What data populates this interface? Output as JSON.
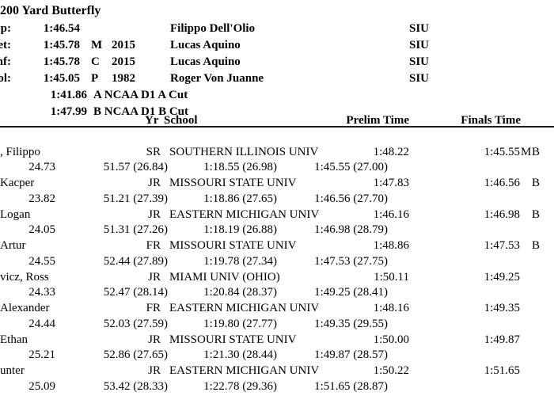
{
  "colors": {
    "background": "#ffffff",
    "text": "#000000",
    "rule": "#1c1c1c"
  },
  "event": {
    "title": "200 Yard Butterfly"
  },
  "records": [
    {
      "label": "p:",
      "time": "1:46.54",
      "flag": "",
      "year": "",
      "holder": "Filippo Dell'Olio",
      "team": "SIU"
    },
    {
      "label": "et:",
      "time": "1:45.78",
      "flag": "M",
      "year": "2015",
      "holder": "Lucas Aquino",
      "team": "SIU"
    },
    {
      "label": "nf:",
      "time": "1:45.78",
      "flag": "C",
      "year": "2015",
      "holder": "Lucas Aquino",
      "team": "SIU"
    },
    {
      "label": "ol:",
      "time": "1:45.05",
      "flag": "P",
      "year": "1982",
      "holder": "Roger Von Juanne",
      "team": "SIU"
    }
  ],
  "cuts": [
    {
      "time": "1:41.86",
      "label": "A NCAA D1 A Cut"
    },
    {
      "time": "1:47.99",
      "label": "B NCAA D1 B Cut"
    }
  ],
  "table": {
    "headers": {
      "yr": "Yr",
      "school": "School",
      "prelim": "Prelim Time",
      "finals": "Finals Time"
    },
    "rows": [
      {
        "name": ", Filippo",
        "yr": "SR",
        "school": "SOUTHERN ILLINOIS UNIV",
        "prelim": "1:48.22",
        "finals": "1:45.55",
        "flags": [
          "M",
          "B"
        ],
        "splits": [
          "24.73",
          "51.57 (26.84)",
          "1:18.55 (26.98)",
          "1:45.55 (27.00)"
        ]
      },
      {
        "name": "Kacper",
        "yr": "JR",
        "school": "MISSOURI STATE UNIV",
        "prelim": "1:47.83",
        "finals": "1:46.56",
        "flags": [
          "",
          "B"
        ],
        "splits": [
          "23.82",
          "51.21 (27.39)",
          "1:18.86 (27.65)",
          "1:46.56 (27.70)"
        ]
      },
      {
        "name": "Logan",
        "yr": "JR",
        "school": "EASTERN MICHIGAN UNIV",
        "prelim": "1:46.16",
        "finals": "1:46.98",
        "flags": [
          "",
          "B"
        ],
        "splits": [
          "24.05",
          "51.31 (27.26)",
          "1:18.19 (26.88)",
          "1:46.98 (28.79)"
        ]
      },
      {
        "name": "Artur",
        "yr": "FR",
        "school": "MISSOURI STATE UNIV",
        "prelim": "1:48.86",
        "finals": "1:47.53",
        "flags": [
          "",
          "B"
        ],
        "splits": [
          "24.55",
          "52.44 (27.89)",
          "1:19.78 (27.34)",
          "1:47.53 (27.75)"
        ]
      },
      {
        "name": "vicz, Ross",
        "yr": "JR",
        "school": "MIAMI UNIV (OHIO)",
        "prelim": "1:50.11",
        "finals": "1:49.25",
        "flags": [
          "",
          ""
        ],
        "splits": [
          "24.33",
          "52.47 (28.14)",
          "1:20.84 (28.37)",
          "1:49.25 (28.41)"
        ]
      },
      {
        "name": "Alexander",
        "yr": "FR",
        "school": "EASTERN MICHIGAN UNIV",
        "prelim": "1:48.16",
        "finals": "1:49.35",
        "flags": [
          "",
          ""
        ],
        "splits": [
          "24.44",
          "52.03 (27.59)",
          "1:19.80 (27.77)",
          "1:49.35 (29.55)"
        ]
      },
      {
        "name": "Ethan",
        "yr": "JR",
        "school": "MISSOURI STATE UNIV",
        "prelim": "1:50.00",
        "finals": "1:49.87",
        "flags": [
          "",
          ""
        ],
        "splits": [
          "25.21",
          "52.86 (27.65)",
          "1:21.30 (28.44)",
          "1:49.87 (28.57)"
        ]
      },
      {
        "name": "unter",
        "yr": "JR",
        "school": "EASTERN MICHIGAN UNIV",
        "prelim": "1:50.22",
        "finals": "1:51.65",
        "flags": [
          "",
          ""
        ],
        "splits": [
          "25.09",
          "53.42 (28.33)",
          "1:22.78 (29.36)",
          "1:51.65 (28.87)"
        ]
      }
    ]
  }
}
